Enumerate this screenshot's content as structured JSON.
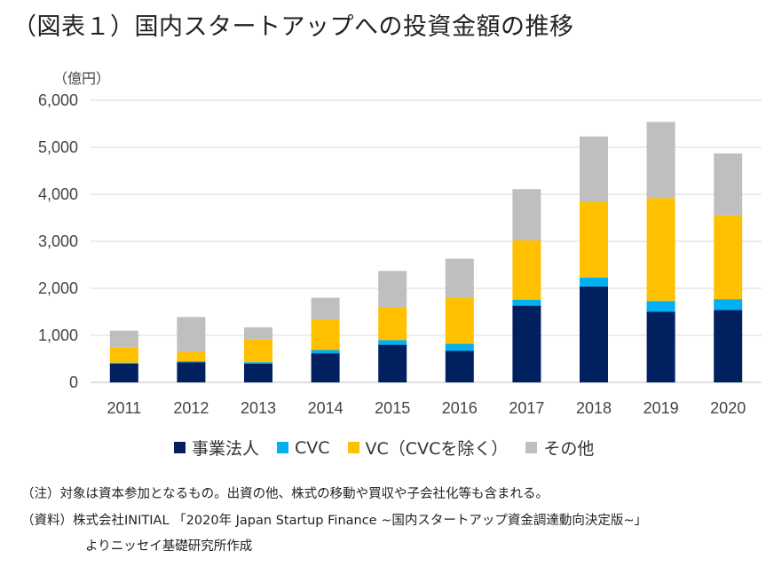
{
  "title": "（図表１）国内スタートアップへの投資金額の推移",
  "notes": {
    "line1": "（注）対象は資本参加となるもの。出資の他、株式の移動や買収や子会社化等も含まれる。",
    "line2": "（資料）株式会社INITIAL 「2020年 Japan Startup Finance ~国内スタートアップ資金調達動向決定版~」",
    "line3": "よりニッセイ基礎研究所作成"
  },
  "chart_data": {
    "type": "bar",
    "stacked": true,
    "ylabel": "（億円）",
    "xlabel": "",
    "ylim": [
      0,
      6000
    ],
    "yticks": [
      0,
      1000,
      2000,
      3000,
      4000,
      5000,
      6000
    ],
    "ytick_labels": [
      "0",
      "1,000",
      "2,000",
      "3,000",
      "4,000",
      "5,000",
      "6,000"
    ],
    "grid": true,
    "legend_position": "bottom",
    "categories": [
      "2011",
      "2012",
      "2013",
      "2014",
      "2015",
      "2016",
      "2017",
      "2018",
      "2019",
      "2020"
    ],
    "series": [
      {
        "name": "事業法人",
        "color": "#002060",
        "values": [
          400,
          430,
          400,
          620,
          800,
          670,
          1630,
          2040,
          1500,
          1540
        ]
      },
      {
        "name": "CVC",
        "color": "#00B0F0",
        "values": [
          20,
          20,
          30,
          70,
          100,
          150,
          130,
          190,
          230,
          230
        ]
      },
      {
        "name": "VC（CVCを除く）",
        "color": "#FFC000",
        "values": [
          330,
          200,
          490,
          650,
          700,
          990,
          1260,
          1610,
          2190,
          1780
        ]
      },
      {
        "name": "その他",
        "color": "#BFBFBF",
        "values": [
          350,
          740,
          250,
          460,
          770,
          820,
          1090,
          1390,
          1620,
          1320
        ]
      }
    ]
  }
}
